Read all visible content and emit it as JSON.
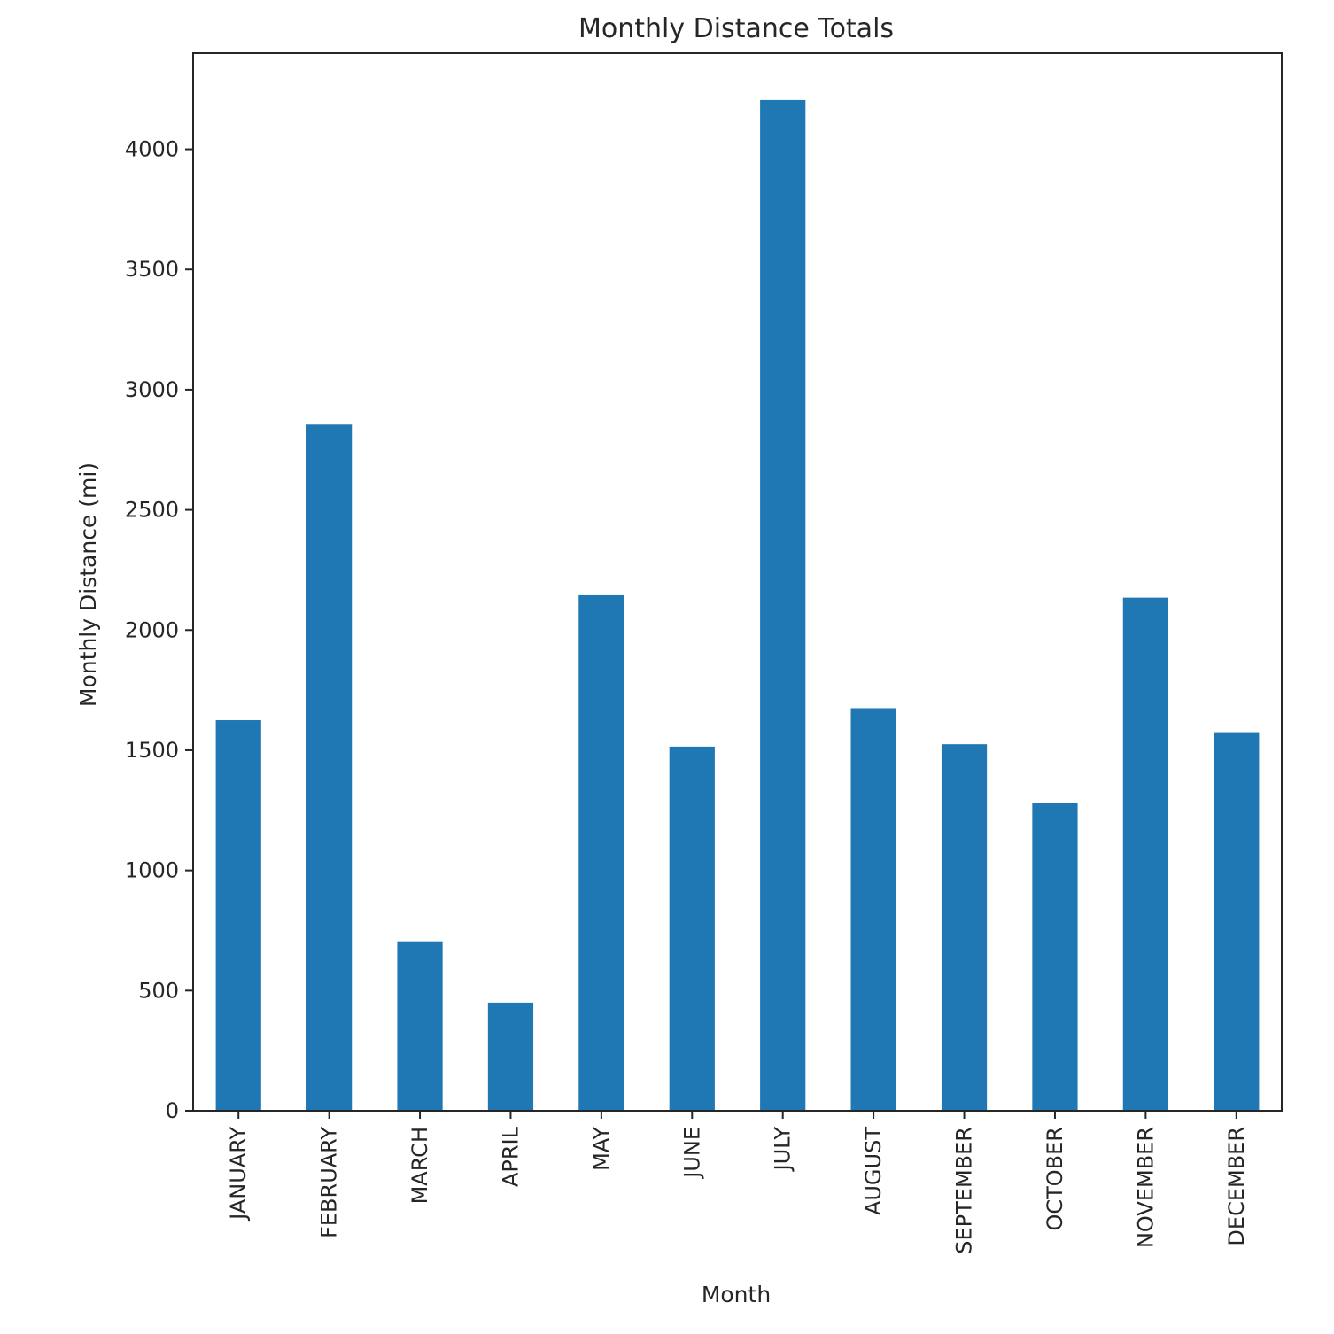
{
  "chart_data": {
    "type": "bar",
    "title": "Monthly Distance Totals",
    "xlabel": "Month",
    "ylabel": "Monthly Distance (mi)",
    "categories": [
      "JANUARY",
      "FEBRUARY",
      "MARCH",
      "APRIL",
      "MAY",
      "JUNE",
      "JULY",
      "AUGUST",
      "SEPTEMBER",
      "OCTOBER",
      "NOVEMBER",
      "DECEMBER"
    ],
    "values": [
      1625,
      2855,
      705,
      450,
      2145,
      1515,
      4205,
      1675,
      1525,
      1280,
      2135,
      1575
    ],
    "ylim": [
      0,
      4400
    ],
    "yticks": [
      0,
      500,
      1000,
      1500,
      2000,
      2500,
      3000,
      3500,
      4000
    ],
    "grid": false,
    "legend": "none",
    "bar_color": "#1f77b4"
  }
}
